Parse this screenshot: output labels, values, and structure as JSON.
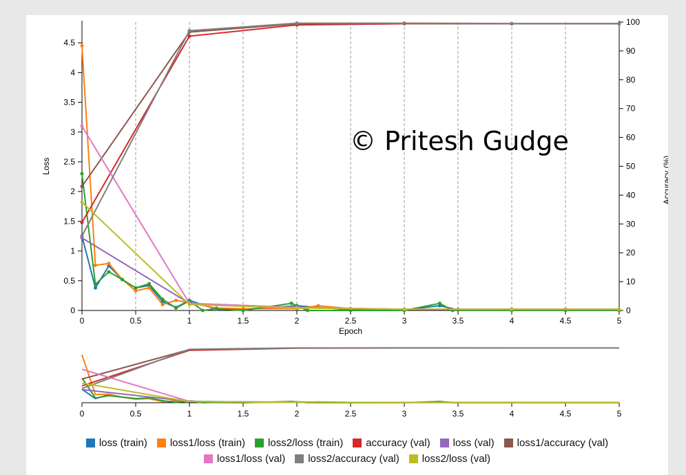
{
  "chart_data": {
    "type": "line",
    "xlabel": "Epoch",
    "ylabel_left": "Loss",
    "ylabel_right": "Accuracy (%)",
    "xlim": [
      0,
      5
    ],
    "ylim_left": [
      0,
      4.85
    ],
    "ylim_right": [
      0,
      100
    ],
    "x_ticks": [
      "0",
      "0.5",
      "1",
      "1.5",
      "2",
      "2.5",
      "3",
      "3.5",
      "4",
      "4.5",
      "5"
    ],
    "y_ticks_left": [
      "0",
      "0.5",
      "1",
      "1.5",
      "2",
      "2.5",
      "3",
      "3.5",
      "4",
      "4.5"
    ],
    "y_ticks_right": [
      "0",
      "10",
      "20",
      "30",
      "40",
      "50",
      "60",
      "70",
      "80",
      "90",
      "100"
    ],
    "grid": "vertical dashed at x ticks",
    "annotation": "© Pritesh Gudge",
    "series": [
      {
        "name": "loss (train)",
        "color": "#1f77b4",
        "axis": "left",
        "x": [
          0,
          0.125,
          0.25,
          0.375,
          0.5,
          0.625,
          0.75,
          0.875,
          1,
          1.25,
          1.5,
          2,
          2.5,
          3,
          3.33,
          3.5,
          4,
          4.5,
          5
        ],
        "y": [
          1.25,
          0.38,
          0.75,
          0.52,
          0.38,
          0.42,
          0.15,
          0.05,
          0.17,
          0.02,
          0.02,
          0.08,
          0.01,
          0.01,
          0.08,
          0.01,
          0.01,
          0.01,
          0.01
        ]
      },
      {
        "name": "loss1/loss (train)",
        "color": "#ff7f0e",
        "axis": "left",
        "x": [
          0,
          0.125,
          0.25,
          0.375,
          0.5,
          0.625,
          0.75,
          0.875,
          1,
          1.25,
          1.5,
          2,
          2.2,
          2.5,
          3,
          3.5,
          4,
          4.5,
          5
        ],
        "y": [
          4.45,
          0.76,
          0.79,
          0.52,
          0.33,
          0.38,
          0.1,
          0.17,
          0.13,
          0.04,
          0.03,
          0.03,
          0.08,
          0.03,
          0.02,
          0.02,
          0.02,
          0.02,
          0.02
        ]
      },
      {
        "name": "loss2/loss (train)",
        "color": "#2ca02c",
        "axis": "left",
        "x": [
          0,
          0.125,
          0.25,
          0.375,
          0.5,
          0.625,
          0.75,
          0.875,
          1,
          1.125,
          1.25,
          1.5,
          1.95,
          2.1,
          2.5,
          3,
          3.33,
          3.45,
          4,
          4.5,
          5
        ],
        "y": [
          2.3,
          0.44,
          0.65,
          0.52,
          0.38,
          0.45,
          0.19,
          0.04,
          0.16,
          0.0,
          0.03,
          0.0,
          0.12,
          0.0,
          0.0,
          0.0,
          0.12,
          0.0,
          0.0,
          0.0,
          0.0
        ]
      },
      {
        "name": "accuracy (val)",
        "color": "#d62728",
        "axis": "right",
        "x": [
          0,
          1,
          2,
          3,
          4,
          5
        ],
        "y": [
          30.5,
          95.1,
          99.0,
          99.4,
          99.4,
          99.4
        ]
      },
      {
        "name": "loss (val)",
        "color": "#9467bd",
        "axis": "left",
        "x": [
          0,
          1,
          2,
          3,
          4,
          5
        ],
        "y": [
          1.22,
          0.12,
          0.05,
          0.02,
          0.02,
          0.02
        ]
      },
      {
        "name": "loss1/accuracy (val)",
        "color": "#8c564b",
        "axis": "right",
        "x": [
          0,
          1,
          2,
          3,
          4,
          5
        ],
        "y": [
          43.0,
          96.5,
          99.4,
          99.5,
          99.4,
          99.4
        ]
      },
      {
        "name": "loss1/loss (val)",
        "color": "#e377c2",
        "axis": "left",
        "x": [
          0,
          1,
          2,
          3,
          4,
          5
        ],
        "y": [
          3.1,
          0.12,
          0.05,
          0.02,
          0.02,
          0.02
        ]
      },
      {
        "name": "loss2/accuracy (val)",
        "color": "#7f7f7f",
        "axis": "right",
        "x": [
          0,
          1,
          2,
          3,
          4,
          5
        ],
        "y": [
          25.8,
          97.0,
          99.6,
          99.6,
          99.5,
          99.5
        ]
      },
      {
        "name": "loss2/loss (val)",
        "color": "#bcbd22",
        "axis": "left",
        "x": [
          0,
          1,
          2,
          3,
          4,
          5
        ],
        "y": [
          1.82,
          0.1,
          0.04,
          0.02,
          0.02,
          0.02
        ]
      }
    ]
  },
  "legend": {
    "row1": [
      {
        "label": "loss (train)",
        "color": "#1f77b4"
      },
      {
        "label": "loss1/loss (train)",
        "color": "#ff7f0e"
      },
      {
        "label": "loss2/loss (train)",
        "color": "#2ca02c"
      },
      {
        "label": "accuracy (val)",
        "color": "#d62728"
      },
      {
        "label": "loss (val)",
        "color": "#9467bd"
      },
      {
        "label": "loss1/accuracy (val)",
        "color": "#8c564b"
      }
    ],
    "row2": [
      {
        "label": "loss1/loss (val)",
        "color": "#e377c2"
      },
      {
        "label": "loss2/accuracy (val)",
        "color": "#7f7f7f"
      },
      {
        "label": "loss2/loss (val)",
        "color": "#bcbd22"
      }
    ]
  }
}
